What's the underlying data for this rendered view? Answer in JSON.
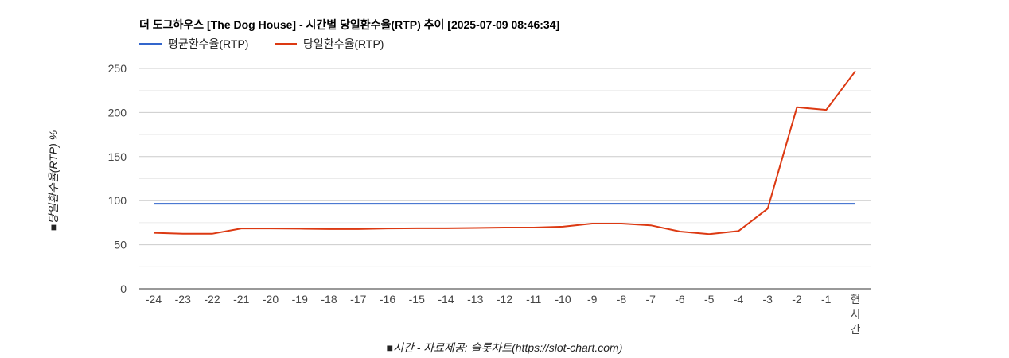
{
  "chart_data": {
    "type": "line",
    "title": "더 도그하우스 [The Dog House] - 시간별 당일환수율(RTP) 추이 [2025-07-09 08:46:34]",
    "xlabel": "■시간 - 자료제공: 슬롯차트(https://slot-chart.com)",
    "ylabel": "■당일환수율(RTP) %",
    "categories": [
      "-24",
      "-23",
      "-22",
      "-21",
      "-20",
      "-19",
      "-18",
      "-17",
      "-16",
      "-15",
      "-14",
      "-13",
      "-12",
      "-11",
      "-10",
      "-9",
      "-8",
      "-7",
      "-6",
      "-5",
      "-4",
      "-3",
      "-2",
      "-1",
      "현시간"
    ],
    "ylim": [
      0,
      250
    ],
    "yticks": [
      0,
      50,
      100,
      150,
      200,
      250
    ],
    "grid": true,
    "legend_position": "top-left",
    "series": [
      {
        "name": "평균환수율(RTP)",
        "color": "#3366cc",
        "values": [
          96.5,
          96.5,
          96.5,
          96.5,
          96.5,
          96.5,
          96.5,
          96.5,
          96.5,
          96.5,
          96.5,
          96.5,
          96.5,
          96.5,
          96.5,
          96.5,
          96.5,
          96.5,
          96.5,
          96.5,
          96.5,
          96.5,
          96.5,
          96.5,
          96.5
        ]
      },
      {
        "name": "당일환수율(RTP)",
        "color": "#dc3912",
        "values": [
          63.5,
          62.5,
          62.5,
          68.5,
          68.5,
          68.2,
          67.8,
          67.8,
          68.5,
          68.7,
          68.7,
          69.0,
          69.5,
          69.5,
          70.5,
          74.0,
          74.0,
          72.0,
          65.0,
          62.0,
          65.5,
          91.0,
          206.0,
          203.0,
          247.0
        ]
      }
    ]
  }
}
